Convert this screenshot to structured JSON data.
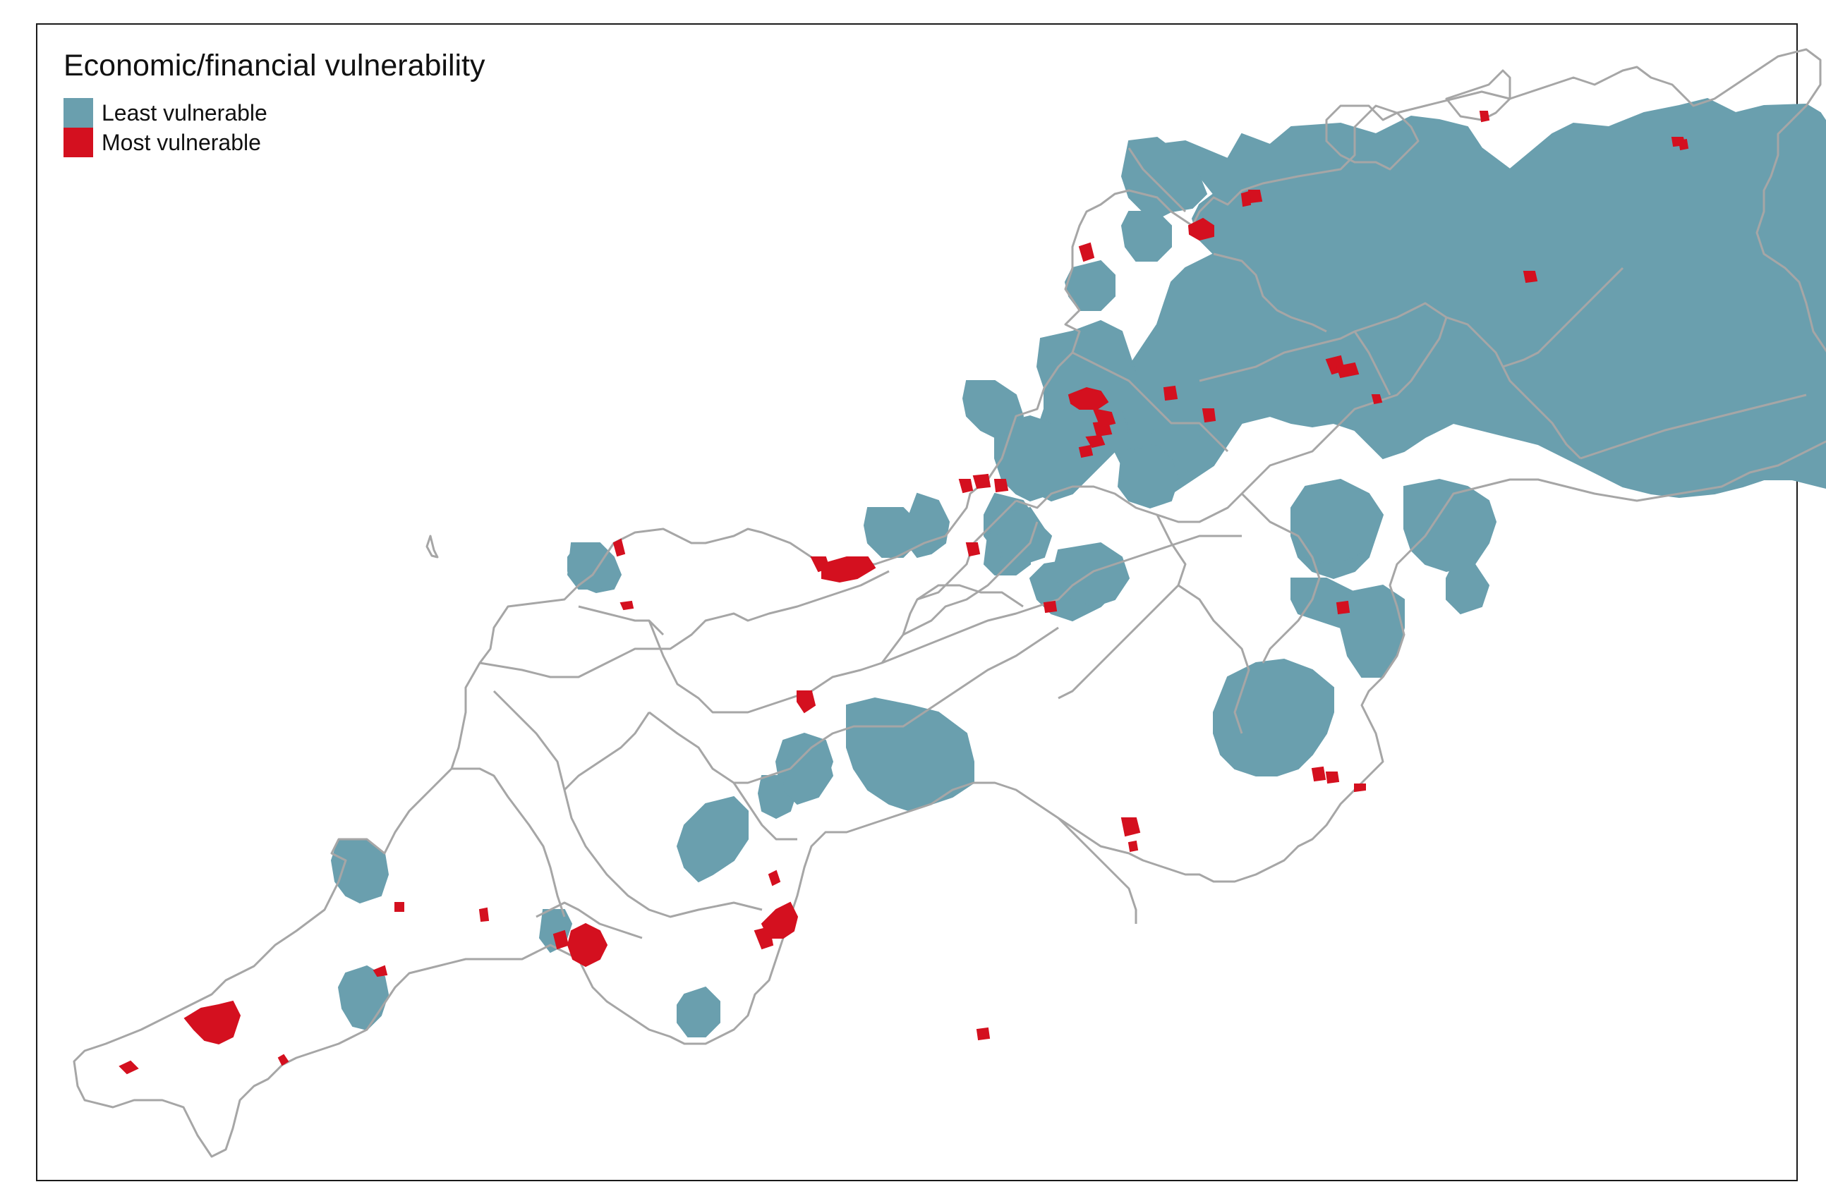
{
  "legend": {
    "title": "Economic/financial vulnerability",
    "items": [
      {
        "key": "least",
        "label": "Least vulnerable",
        "color": "#6a9fae"
      },
      {
        "key": "most",
        "label": "Most vulnerable",
        "color": "#d4101f"
      }
    ]
  },
  "boundary_color": "#a6a6a6",
  "frame_color": "#1a1a1a"
}
